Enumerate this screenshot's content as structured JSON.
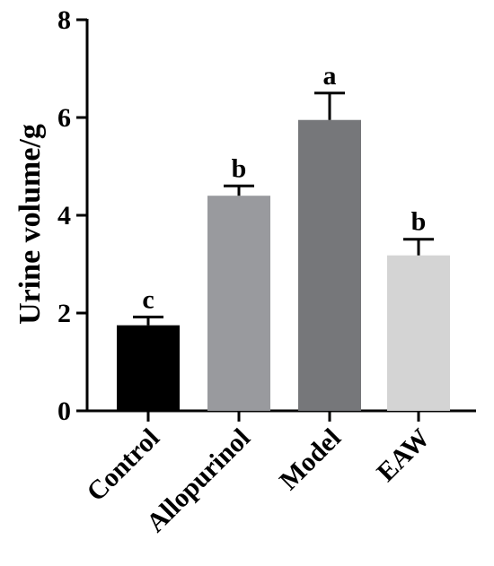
{
  "chart_data": {
    "type": "bar",
    "title": "",
    "xlabel": "",
    "ylabel": "Urine volume/g",
    "ylim": [
      0,
      8
    ],
    "yticks": [
      0,
      2,
      4,
      6,
      8
    ],
    "grid": false,
    "categories": [
      "Control",
      "Allopurinol",
      "Model",
      "EAW"
    ],
    "values": [
      1.75,
      4.4,
      5.95,
      3.18
    ],
    "errors": [
      0.17,
      0.2,
      0.55,
      0.33
    ],
    "significance": [
      "c",
      "b",
      "a",
      "b"
    ],
    "colors": [
      "#000000",
      "#999a9e",
      "#76777a",
      "#d4d4d4"
    ]
  }
}
